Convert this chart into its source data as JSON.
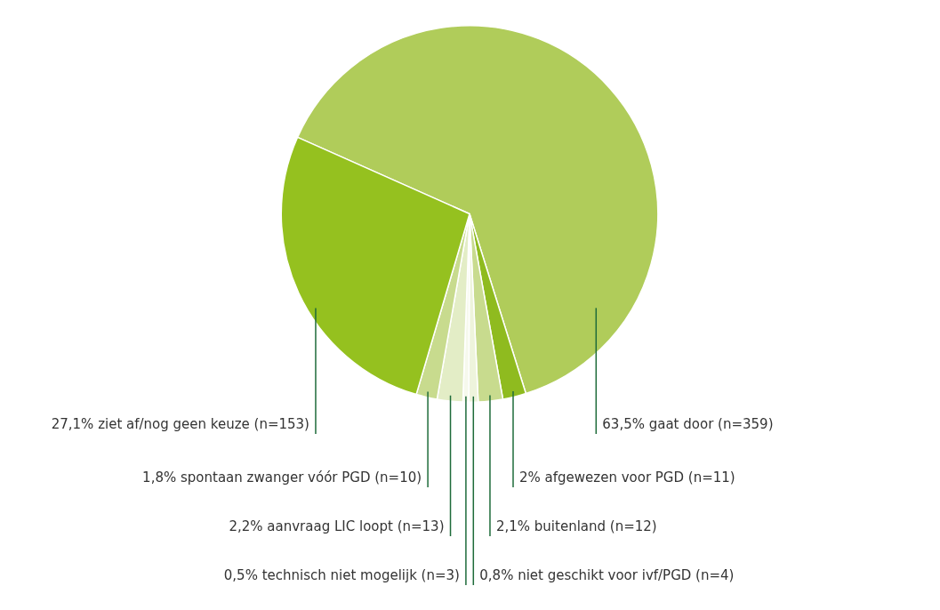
{
  "chart_data": {
    "type": "pie",
    "categories": [
      "gaat door (n=359)",
      "afgewezen voor PGD (n=11)",
      "buitenland (n=12)",
      "niet geschikt voor ivf/PGD (n=4)",
      "technisch niet mogelijk (n=3)",
      "aanvraag LIC loopt (n=13)",
      "spontaan zwanger vóór PGD (n=10)",
      "ziet af/nog geen keuze (n=153)"
    ],
    "values": [
      63.5,
      2,
      2.1,
      0.8,
      0.5,
      2.2,
      1.8,
      27.1
    ],
    "value_labels": [
      "63,5%",
      "2%",
      "2,1%",
      "0,8%",
      "0,5%",
      "2,2%",
      "1,8%",
      "27,1%"
    ],
    "colors": [
      "#b0cc5a",
      "#8fbb1f",
      "#c8db8e",
      "#eef4dc",
      "#f6f9ec",
      "#e3edc6",
      "#c8db8e",
      "#95c11f"
    ],
    "legend": false
  }
}
